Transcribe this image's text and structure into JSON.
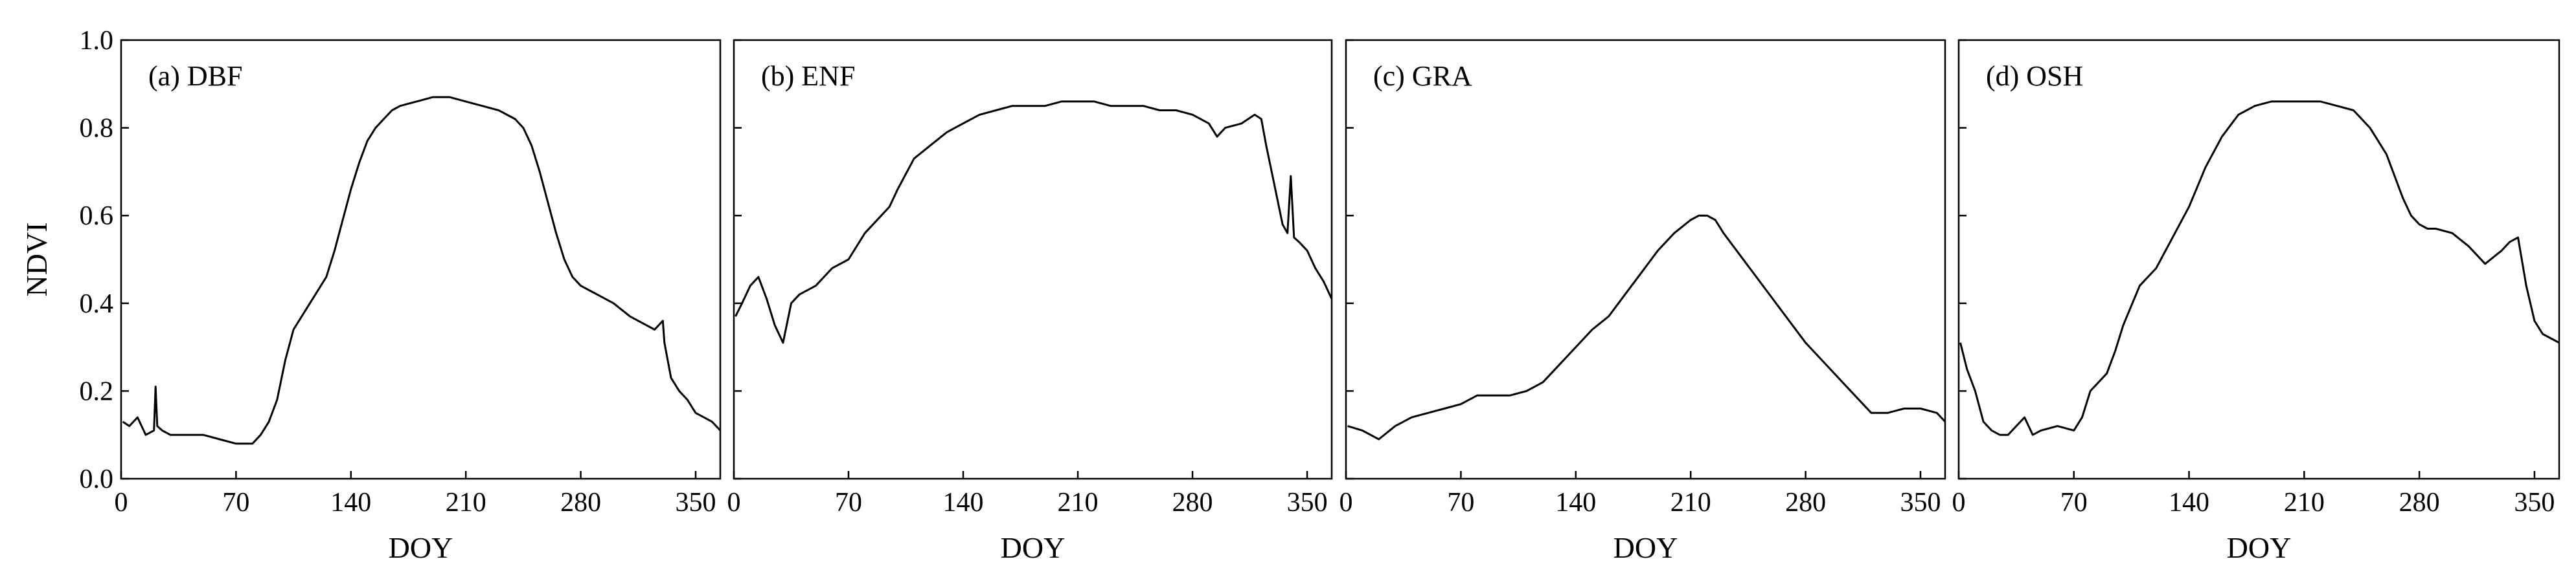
{
  "chart_data": [
    {
      "type": "line",
      "title": "(a) DBF",
      "xlabel": "DOY",
      "ylabel": "NDVI",
      "xlim": [
        0,
        365
      ],
      "ylim": [
        0,
        1.0
      ],
      "xticks": [
        0,
        70,
        140,
        210,
        280,
        350
      ],
      "yticks": [
        0.0,
        0.2,
        0.4,
        0.6,
        0.8,
        1.0
      ],
      "series": [
        {
          "x": [
            1,
            5,
            10,
            15,
            20,
            21,
            22,
            25,
            30,
            40,
            50,
            60,
            70,
            80,
            85,
            90,
            95,
            100,
            105,
            110,
            115,
            120,
            125,
            130,
            135,
            140,
            145,
            150,
            155,
            160,
            165,
            170,
            180,
            190,
            200,
            210,
            220,
            230,
            240,
            245,
            250,
            255,
            260,
            265,
            270,
            275,
            280,
            285,
            290,
            300,
            310,
            320,
            325,
            330,
            331,
            335,
            340,
            345,
            350,
            355,
            360,
            365
          ],
          "y": [
            0.13,
            0.12,
            0.14,
            0.1,
            0.11,
            0.21,
            0.12,
            0.11,
            0.1,
            0.1,
            0.1,
            0.09,
            0.08,
            0.08,
            0.1,
            0.13,
            0.18,
            0.27,
            0.34,
            0.37,
            0.4,
            0.43,
            0.46,
            0.52,
            0.59,
            0.66,
            0.72,
            0.77,
            0.8,
            0.82,
            0.84,
            0.85,
            0.86,
            0.87,
            0.87,
            0.86,
            0.85,
            0.84,
            0.82,
            0.8,
            0.76,
            0.7,
            0.63,
            0.56,
            0.5,
            0.46,
            0.44,
            0.43,
            0.42,
            0.4,
            0.37,
            0.35,
            0.34,
            0.36,
            0.31,
            0.23,
            0.2,
            0.18,
            0.15,
            0.14,
            0.13,
            0.11
          ]
        }
      ]
    },
    {
      "type": "line",
      "title": "(b) ENF",
      "xlabel": "DOY",
      "ylabel": "",
      "xlim": [
        0,
        365
      ],
      "ylim": [
        0,
        1.0
      ],
      "xticks": [
        0,
        70,
        140,
        210,
        280,
        350
      ],
      "series": [
        {
          "x": [
            1,
            5,
            10,
            15,
            20,
            25,
            30,
            35,
            40,
            50,
            60,
            70,
            80,
            90,
            95,
            100,
            110,
            120,
            130,
            140,
            150,
            160,
            170,
            180,
            190,
            200,
            210,
            220,
            230,
            240,
            250,
            260,
            270,
            280,
            290,
            295,
            300,
            310,
            318,
            322,
            325,
            330,
            335,
            338,
            340,
            342,
            345,
            350,
            355,
            360,
            365
          ],
          "y": [
            0.37,
            0.4,
            0.44,
            0.46,
            0.41,
            0.35,
            0.31,
            0.4,
            0.42,
            0.44,
            0.48,
            0.5,
            0.56,
            0.6,
            0.62,
            0.66,
            0.73,
            0.76,
            0.79,
            0.81,
            0.83,
            0.84,
            0.85,
            0.85,
            0.85,
            0.86,
            0.86,
            0.86,
            0.85,
            0.85,
            0.85,
            0.84,
            0.84,
            0.83,
            0.81,
            0.78,
            0.8,
            0.81,
            0.83,
            0.82,
            0.76,
            0.67,
            0.58,
            0.56,
            0.69,
            0.55,
            0.54,
            0.52,
            0.48,
            0.45,
            0.41
          ]
        }
      ]
    },
    {
      "type": "line",
      "title": "(c) GRA",
      "xlabel": "DOY",
      "ylabel": "",
      "xlim": [
        0,
        365
      ],
      "ylim": [
        0,
        1.0
      ],
      "xticks": [
        0,
        70,
        140,
        210,
        280,
        350
      ],
      "series": [
        {
          "x": [
            1,
            10,
            20,
            30,
            40,
            50,
            60,
            70,
            80,
            90,
            100,
            110,
            120,
            130,
            140,
            150,
            160,
            170,
            180,
            190,
            200,
            210,
            215,
            220,
            225,
            230,
            240,
            250,
            260,
            270,
            280,
            290,
            300,
            310,
            320,
            330,
            340,
            350,
            360,
            365
          ],
          "y": [
            0.12,
            0.11,
            0.09,
            0.12,
            0.14,
            0.15,
            0.16,
            0.17,
            0.19,
            0.19,
            0.19,
            0.2,
            0.22,
            0.26,
            0.3,
            0.34,
            0.37,
            0.42,
            0.47,
            0.52,
            0.56,
            0.59,
            0.6,
            0.6,
            0.59,
            0.56,
            0.51,
            0.46,
            0.41,
            0.36,
            0.31,
            0.27,
            0.23,
            0.19,
            0.15,
            0.15,
            0.16,
            0.16,
            0.15,
            0.13
          ]
        }
      ]
    },
    {
      "type": "line",
      "title": "(d) OSH",
      "xlabel": "DOY",
      "ylabel": "",
      "xlim": [
        0,
        365
      ],
      "ylim": [
        0,
        1.0
      ],
      "xticks": [
        0,
        70,
        140,
        210,
        280,
        350
      ],
      "series": [
        {
          "x": [
            1,
            5,
            10,
            15,
            20,
            25,
            30,
            35,
            40,
            45,
            50,
            60,
            70,
            75,
            80,
            90,
            95,
            100,
            110,
            120,
            130,
            140,
            150,
            160,
            170,
            180,
            190,
            200,
            210,
            220,
            230,
            240,
            250,
            260,
            265,
            270,
            275,
            280,
            285,
            290,
            300,
            310,
            320,
            330,
            335,
            340,
            345,
            350,
            355,
            360,
            365
          ],
          "y": [
            0.31,
            0.25,
            0.2,
            0.13,
            0.11,
            0.1,
            0.1,
            0.12,
            0.14,
            0.1,
            0.11,
            0.12,
            0.11,
            0.14,
            0.2,
            0.24,
            0.29,
            0.35,
            0.44,
            0.48,
            0.55,
            0.62,
            0.71,
            0.78,
            0.83,
            0.85,
            0.86,
            0.86,
            0.86,
            0.86,
            0.85,
            0.84,
            0.8,
            0.74,
            0.69,
            0.64,
            0.6,
            0.58,
            0.57,
            0.57,
            0.56,
            0.53,
            0.49,
            0.52,
            0.54,
            0.55,
            0.44,
            0.36,
            0.33,
            0.32,
            0.31
          ]
        }
      ]
    }
  ]
}
